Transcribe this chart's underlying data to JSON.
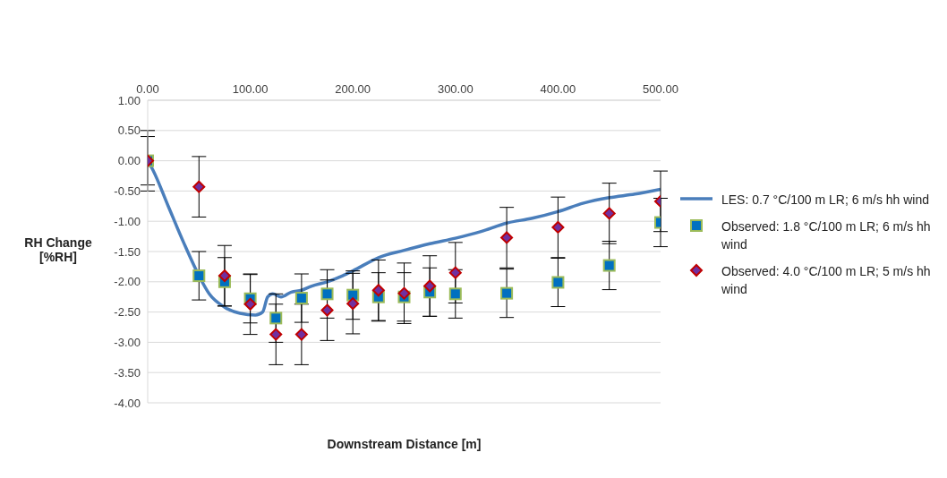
{
  "chart_data": {
    "type": "scatter",
    "xlabel": "Downstream Distance [m]",
    "ylabel": "RH Change [%RH]",
    "xlim": [
      0,
      500
    ],
    "xticks": [
      {
        "value": 0,
        "label": "0.00"
      },
      {
        "value": 100,
        "label": "100.00"
      },
      {
        "value": 200,
        "label": "200.00"
      },
      {
        "value": 300,
        "label": "300.00"
      },
      {
        "value": 400,
        "label": "400.00"
      },
      {
        "value": 500,
        "label": "500.00"
      }
    ],
    "ylim": [
      -4,
      1
    ],
    "yticks": [
      {
        "value": -4,
        "label": "-4.00"
      },
      {
        "value": -3.5,
        "label": "-3.50"
      },
      {
        "value": -3,
        "label": "-3.00"
      },
      {
        "value": -2.5,
        "label": "-2.50"
      },
      {
        "value": -2,
        "label": "-2.00"
      },
      {
        "value": -1.5,
        "label": "-1.50"
      },
      {
        "value": -1,
        "label": "-1.00"
      },
      {
        "value": -0.5,
        "label": "-0.50"
      },
      {
        "value": 0,
        "label": "0.00"
      },
      {
        "value": 0.5,
        "label": "0.50"
      },
      {
        "value": 1,
        "label": "1.00"
      }
    ],
    "grid": "y",
    "legend": "right",
    "series": [
      {
        "type": "line",
        "name": "LES: 0.7 °C/100 m LR; 6 m/s hh wind",
        "color": "#4a7ebb",
        "marker": "none",
        "line_style": "solid",
        "x": [
          0,
          5,
          20,
          35,
          50,
          60,
          75,
          90,
          105,
          112,
          117,
          122,
          130,
          140,
          150,
          160,
          175,
          190,
          200,
          225,
          250,
          275,
          300,
          325,
          350,
          375,
          400,
          425,
          450,
          475,
          500
        ],
        "values": [
          0,
          -0.15,
          -0.75,
          -1.35,
          -1.9,
          -2.2,
          -2.42,
          -2.52,
          -2.55,
          -2.5,
          -2.25,
          -2.2,
          -2.25,
          -2.17,
          -2.14,
          -2.07,
          -2.0,
          -1.9,
          -1.82,
          -1.6,
          -1.48,
          -1.37,
          -1.28,
          -1.17,
          -1.03,
          -0.95,
          -0.84,
          -0.7,
          -0.61,
          -0.55,
          -0.47
        ]
      },
      {
        "name": "Observed: 1.8 °C/100 m LR; 6 m/s hh wind",
        "color": "#0070c0",
        "marker": "square",
        "x": [
          0,
          50,
          75,
          100,
          125,
          150,
          175,
          200,
          225,
          250,
          275,
          300,
          350,
          400,
          450,
          500
        ],
        "values": [
          0,
          -1.9,
          -2.0,
          -2.28,
          -2.6,
          -2.27,
          -2.2,
          -2.22,
          -2.25,
          -2.25,
          -2.17,
          -2.2,
          -2.19,
          -2.01,
          -1.73,
          -1.02
        ],
        "errors": [
          0.4,
          0.4,
          0.4,
          0.4,
          0.4,
          0.4,
          0.4,
          0.4,
          0.4,
          0.4,
          0.4,
          0.4,
          0.4,
          0.4,
          0.4,
          0.4
        ]
      },
      {
        "name": "Observed: 4.0 °C/100 m LR; 5 m/s hh wind",
        "color": "#7030a0",
        "marker": "diamond",
        "x": [
          0,
          50,
          75,
          100,
          125,
          150,
          175,
          200,
          225,
          250,
          275,
          300,
          350,
          400,
          450,
          500
        ],
        "values": [
          0,
          -0.43,
          -1.9,
          -2.37,
          -2.87,
          -2.87,
          -2.47,
          -2.36,
          -2.14,
          -2.19,
          -2.07,
          -1.85,
          -1.27,
          -1.1,
          -0.87,
          -0.67
        ],
        "errors": [
          0.5,
          0.5,
          0.5,
          0.5,
          0.5,
          0.5,
          0.5,
          0.5,
          0.5,
          0.5,
          0.5,
          0.5,
          0.5,
          0.5,
          0.5,
          0.5
        ]
      }
    ]
  }
}
